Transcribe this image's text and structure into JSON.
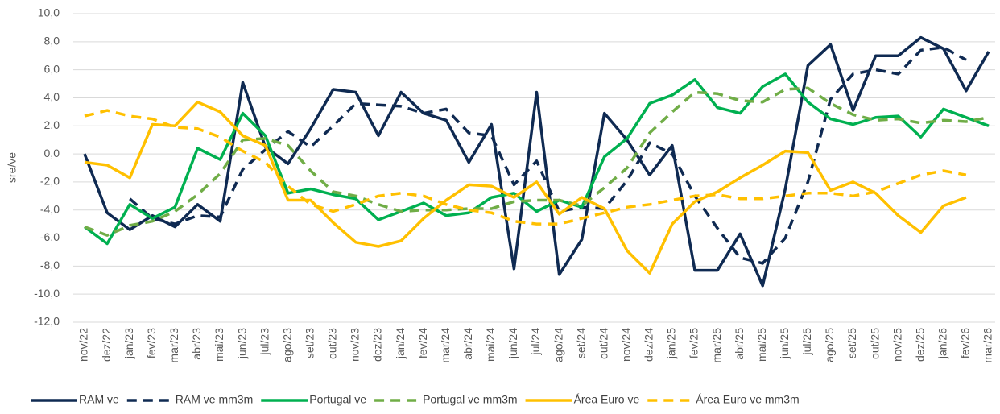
{
  "chart_data": {
    "type": "line",
    "y_label": "sre/ve",
    "categories": [
      "nov/22",
      "dez/22",
      "jan/23",
      "fev/23",
      "mar/23",
      "abr/23",
      "mai/23",
      "jun/23",
      "jul/23",
      "ago/23",
      "set/23",
      "out/23",
      "nov/23",
      "dez/23",
      "jan/24",
      "fev/24",
      "mar/24",
      "abr/24",
      "mai/24",
      "jun/24",
      "jul/24",
      "ago/24",
      "set/24",
      "out/24",
      "nov/24",
      "dez/24",
      "jan/25",
      "fev/25",
      "mar/25",
      "abr/25",
      "mai/25",
      "jun/25",
      "jul/25",
      "ago/25",
      "set/25",
      "out/25",
      "nov/25",
      "dez/25",
      "jan/26",
      "fev/26",
      "mar/26"
    ],
    "series": [
      {
        "name": "RAM ve",
        "color": "#0f2a52",
        "dashed": false,
        "values": [
          0.0,
          -4.2,
          -5.4,
          -4.4,
          -5.2,
          -3.6,
          -4.8,
          5.1,
          0.5,
          -0.7,
          1.8,
          4.6,
          4.4,
          1.3,
          4.4,
          2.9,
          2.4,
          -0.6,
          2.1,
          -8.2,
          4.4,
          -8.6,
          -6.1,
          2.9,
          1.0,
          -1.5,
          0.6,
          -8.3,
          -8.3,
          -5.7,
          -9.4,
          -2.5,
          6.3,
          7.8,
          3.1,
          7.0,
          7.0,
          8.3,
          7.5,
          4.5,
          7.3
        ]
      },
      {
        "name": "RAM ve mm3m",
        "color": "#0f2a52",
        "dashed": true,
        "values": [
          null,
          null,
          -3.2,
          -4.6,
          -5.0,
          -4.4,
          -4.5,
          -1.1,
          0.3,
          1.6,
          0.5,
          2.0,
          3.6,
          3.5,
          3.4,
          2.9,
          3.2,
          1.5,
          1.3,
          -2.2,
          -0.5,
          -4.1,
          -3.8,
          -3.9,
          -1.9,
          0.8,
          0.0,
          -3.0,
          -5.3,
          -7.4,
          -7.8,
          -6.0,
          -2.0,
          3.9,
          5.7,
          6.0,
          5.7,
          7.4,
          7.6,
          6.7,
          null
        ]
      },
      {
        "name": "Portugal ve",
        "color": "#00b050",
        "dashed": false,
        "values": [
          -5.2,
          -6.4,
          -3.6,
          -4.6,
          -3.8,
          0.4,
          -0.4,
          2.9,
          1.3,
          -2.8,
          -2.5,
          -2.9,
          -3.2,
          -4.7,
          -4.1,
          -3.5,
          -4.4,
          -4.2,
          -3.1,
          -2.8,
          -4.1,
          -3.3,
          -3.8,
          -0.2,
          1.1,
          3.6,
          4.2,
          5.3,
          3.3,
          2.9,
          4.8,
          5.7,
          3.7,
          2.5,
          2.1,
          2.6,
          2.7,
          1.2,
          3.2,
          2.6,
          2.0
        ]
      },
      {
        "name": "Portugal ve mm3m",
        "color": "#70ad47",
        "dashed": true,
        "values": [
          -5.2,
          -5.8,
          -5.1,
          -4.8,
          -4.1,
          -2.9,
          -1.4,
          1.0,
          1.1,
          0.6,
          -1.2,
          -2.7,
          -3.0,
          -3.6,
          -4.1,
          -4.0,
          -4.0,
          -3.9,
          -3.9,
          -3.4,
          -3.3,
          -3.3,
          -3.7,
          -2.4,
          -1.0,
          1.5,
          3.0,
          4.4,
          4.3,
          3.8,
          3.7,
          4.6,
          4.7,
          3.6,
          2.8,
          2.4,
          2.5,
          2.2,
          2.4,
          2.3,
          2.6
        ]
      },
      {
        "name": "Área Euro ve",
        "color": "#ffc000",
        "dashed": false,
        "values": [
          -0.6,
          -0.8,
          -1.7,
          2.1,
          2.0,
          3.7,
          3.0,
          1.3,
          0.6,
          -3.3,
          -3.3,
          -4.9,
          -6.3,
          -6.6,
          -6.2,
          -4.6,
          -3.3,
          -2.2,
          -2.3,
          -3.1,
          -2.0,
          -4.3,
          -3.1,
          -3.9,
          -6.9,
          -8.5,
          -5.0,
          -3.4,
          -2.7,
          -1.7,
          -0.8,
          0.2,
          0.1,
          -2.6,
          -2.0,
          -2.8,
          -4.4,
          -5.6,
          -3.7,
          -3.1,
          null
        ]
      },
      {
        "name": "Área Euro ve mm3m",
        "color": "#ffc000",
        "dashed": true,
        "values": [
          2.7,
          3.1,
          2.7,
          2.5,
          1.9,
          1.8,
          1.2,
          0.2,
          -0.6,
          -2.3,
          -3.6,
          -4.1,
          -3.6,
          -3.0,
          -2.8,
          -3.0,
          -3.6,
          -4.0,
          -4.2,
          -4.8,
          -5.0,
          -5.0,
          -4.6,
          -4.2,
          -3.8,
          -3.6,
          -3.3,
          -3.0,
          -2.9,
          -3.2,
          -3.2,
          -3.0,
          -2.8,
          -2.8,
          -3.0,
          -2.7,
          -2.1,
          -1.5,
          -1.2,
          -1.5,
          null
        ]
      }
    ],
    "ylim": [
      -12,
      10
    ],
    "yticks": [
      {
        "value": -12,
        "label": "-12,0"
      },
      {
        "value": -10,
        "label": "-10,0"
      },
      {
        "value": -8,
        "label": "-8,0"
      },
      {
        "value": -6,
        "label": "-6,0"
      },
      {
        "value": -4,
        "label": "-4,0"
      },
      {
        "value": -2,
        "label": "-2,0"
      },
      {
        "value": 0,
        "label": "0,0"
      },
      {
        "value": 2,
        "label": "2,0"
      },
      {
        "value": 4,
        "label": "4,0"
      },
      {
        "value": 6,
        "label": "6,0"
      },
      {
        "value": 8,
        "label": "8,0"
      },
      {
        "value": 10,
        "label": "10,0"
      }
    ],
    "grid": true,
    "legend": "bottom"
  }
}
